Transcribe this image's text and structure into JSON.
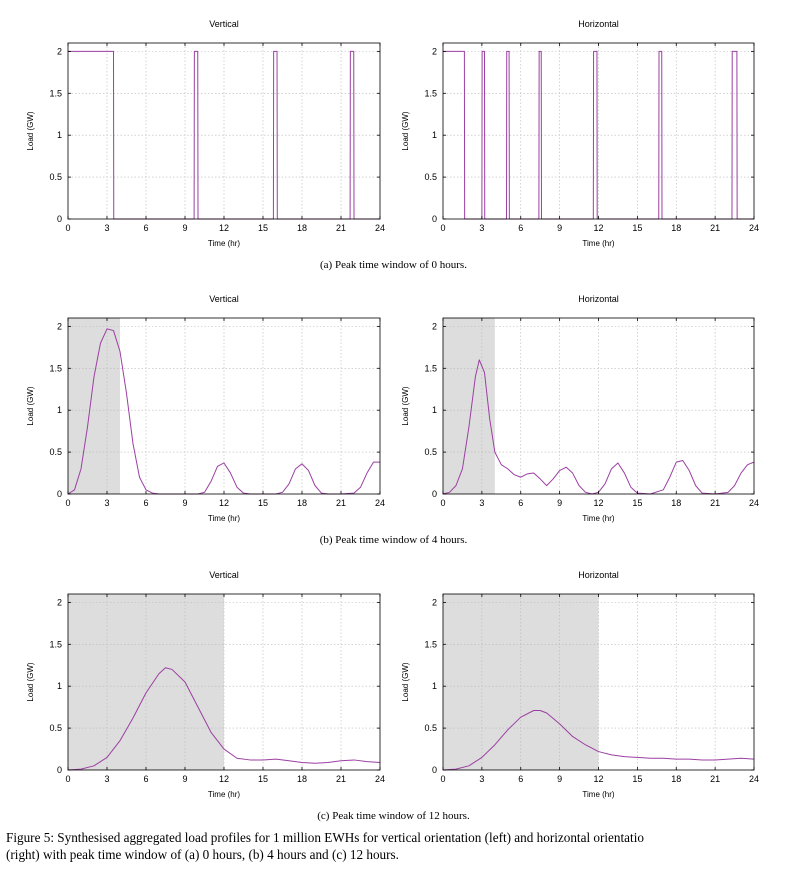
{
  "caption": {
    "line1": "Figure 5: Synthesised aggregated load profiles for 1 million EWHs for vertical orientation (left) and horizontal orientatio",
    "line2": "(right) with peak time window of (a) 0 hours, (b) 4 hours and (c) 12 hours."
  },
  "subcaptions": {
    "a": "(a) Peak time window of 0 hours.",
    "b": "(b) Peak time window of 4 hours.",
    "c": "(c) Peak time window of 12 hours."
  },
  "colors": {
    "series": "#9b3fa2",
    "shade": "#dddddd",
    "grid": "#b8b8b8",
    "axis": "#000000"
  },
  "chart_data": [
    {
      "type": "line",
      "panel": "a-left",
      "title": "Vertical",
      "xlabel": "Time (hr)",
      "ylabel": "Load (GW)",
      "xlim": [
        0,
        24
      ],
      "ylim": [
        0,
        2.1
      ],
      "xticks": [
        "0",
        "3",
        "6",
        "9",
        "12",
        "15",
        "18",
        "21",
        "24"
      ],
      "yticks": [
        "0",
        "0.5",
        "1",
        "1.5",
        "2"
      ],
      "grid": true,
      "shade": null,
      "x": [
        0,
        3.5,
        3.52,
        9.7,
        9.72,
        9.98,
        10,
        15.8,
        15.82,
        16.08,
        16.1,
        21.7,
        21.72,
        21.98,
        22,
        24
      ],
      "y": [
        2,
        2,
        0,
        0,
        2,
        2,
        0,
        0,
        2,
        2,
        0,
        0,
        2,
        2,
        0,
        0
      ]
    },
    {
      "type": "line",
      "panel": "a-right",
      "title": "Horizontal",
      "xlabel": "Time (hr)",
      "ylabel": "Load (GW)",
      "xlim": [
        0,
        24
      ],
      "ylim": [
        0,
        2.1
      ],
      "xticks": [
        "0",
        "3",
        "6",
        "9",
        "12",
        "15",
        "18",
        "21",
        "24"
      ],
      "yticks": [
        "0",
        "0.5",
        "1",
        "1.5",
        "2"
      ],
      "grid": true,
      "shade": null,
      "x": [
        0,
        1.65,
        1.67,
        3.0,
        3.02,
        3.2,
        3.22,
        4.9,
        4.92,
        5.1,
        5.12,
        7.4,
        7.42,
        7.58,
        7.6,
        11.6,
        11.62,
        11.88,
        11.9,
        16.65,
        16.67,
        16.88,
        16.9,
        22.3,
        22.32,
        22.68,
        22.7,
        24
      ],
      "y": [
        2,
        2,
        0,
        0,
        2,
        2,
        0,
        0,
        2,
        2,
        0,
        0,
        2,
        2,
        0,
        0,
        2,
        2,
        0,
        0,
        2,
        2,
        0,
        0,
        2,
        2,
        0,
        0
      ]
    },
    {
      "type": "line",
      "panel": "b-left",
      "title": "Vertical",
      "xlabel": "Time (hr)",
      "ylabel": "Load (GW)",
      "xlim": [
        0,
        24
      ],
      "ylim": [
        0,
        2.1
      ],
      "xticks": [
        "0",
        "3",
        "6",
        "9",
        "12",
        "15",
        "18",
        "21",
        "24"
      ],
      "yticks": [
        "0",
        "0.5",
        "1",
        "1.5",
        "2"
      ],
      "grid": true,
      "shade": [
        0,
        4
      ],
      "x": [
        0,
        0.5,
        1,
        1.5,
        2,
        2.5,
        3,
        3.5,
        4,
        4.5,
        5,
        5.5,
        6,
        6.5,
        7,
        8,
        9,
        10,
        10.5,
        11,
        11.5,
        12,
        12.5,
        13,
        13.5,
        14,
        15,
        16,
        16.5,
        17,
        17.5,
        18,
        18.5,
        19,
        19.5,
        20,
        21,
        22,
        22.5,
        23,
        23.5,
        24
      ],
      "y": [
        0,
        0.05,
        0.3,
        0.8,
        1.4,
        1.8,
        1.97,
        1.95,
        1.7,
        1.2,
        0.6,
        0.2,
        0.05,
        0.01,
        0,
        0,
        0,
        0,
        0.02,
        0.15,
        0.33,
        0.37,
        0.25,
        0.08,
        0.01,
        0,
        0,
        0,
        0.02,
        0.12,
        0.3,
        0.36,
        0.28,
        0.1,
        0.01,
        0,
        0,
        0.01,
        0.08,
        0.25,
        0.38,
        0.38
      ]
    },
    {
      "type": "line",
      "panel": "b-right",
      "title": "Horizontal",
      "xlabel": "Time (hr)",
      "ylabel": "Load (GW)",
      "xlim": [
        0,
        24
      ],
      "ylim": [
        0,
        2.1
      ],
      "xticks": [
        "0",
        "3",
        "6",
        "9",
        "12",
        "15",
        "18",
        "21",
        "24"
      ],
      "yticks": [
        "0",
        "0.5",
        "1",
        "1.5",
        "2"
      ],
      "grid": true,
      "shade": [
        0,
        4
      ],
      "x": [
        0,
        0.5,
        1,
        1.5,
        2,
        2.5,
        2.8,
        3.2,
        3.6,
        4,
        4.5,
        5,
        5.5,
        6,
        6.5,
        7,
        7.5,
        8,
        8.5,
        9,
        9.5,
        10,
        10.5,
        11,
        11.5,
        12,
        12.5,
        13,
        13.5,
        14,
        14.5,
        15,
        16,
        17,
        17.5,
        18,
        18.5,
        19,
        19.5,
        20,
        21,
        22,
        22.5,
        23,
        23.5,
        24
      ],
      "y": [
        0,
        0.02,
        0.1,
        0.3,
        0.8,
        1.4,
        1.6,
        1.45,
        0.9,
        0.5,
        0.35,
        0.3,
        0.23,
        0.2,
        0.24,
        0.25,
        0.18,
        0.1,
        0.18,
        0.28,
        0.32,
        0.25,
        0.1,
        0.02,
        0,
        0.02,
        0.12,
        0.3,
        0.37,
        0.25,
        0.08,
        0.01,
        0,
        0.05,
        0.2,
        0.38,
        0.4,
        0.28,
        0.1,
        0.01,
        0,
        0.02,
        0.1,
        0.25,
        0.35,
        0.38
      ]
    },
    {
      "type": "line",
      "panel": "c-left",
      "title": "Vertical",
      "xlabel": "Time (hr)",
      "ylabel": "Load (GW)",
      "xlim": [
        0,
        24
      ],
      "ylim": [
        0,
        2.1
      ],
      "xticks": [
        "0",
        "3",
        "6",
        "9",
        "12",
        "15",
        "18",
        "21",
        "24"
      ],
      "yticks": [
        "0",
        "0.5",
        "1",
        "1.5",
        "2"
      ],
      "grid": true,
      "shade": [
        0,
        12
      ],
      "x": [
        0,
        1,
        2,
        3,
        4,
        5,
        6,
        7,
        7.5,
        8,
        9,
        10,
        11,
        12,
        13,
        14,
        15,
        16,
        17,
        18,
        19,
        20,
        21,
        22,
        23,
        24
      ],
      "y": [
        0,
        0.01,
        0.05,
        0.15,
        0.35,
        0.62,
        0.92,
        1.15,
        1.22,
        1.2,
        1.05,
        0.75,
        0.45,
        0.25,
        0.14,
        0.12,
        0.12,
        0.13,
        0.11,
        0.09,
        0.08,
        0.09,
        0.11,
        0.12,
        0.1,
        0.09
      ]
    },
    {
      "type": "line",
      "panel": "c-right",
      "title": "Horizontal",
      "xlabel": "Time (hr)",
      "ylabel": "Load (GW)",
      "xlim": [
        0,
        24
      ],
      "ylim": [
        0,
        2.1
      ],
      "xticks": [
        "0",
        "3",
        "6",
        "9",
        "12",
        "15",
        "18",
        "21",
        "24"
      ],
      "yticks": [
        "0",
        "0.5",
        "1",
        "1.5",
        "2"
      ],
      "grid": true,
      "shade": [
        0,
        12
      ],
      "x": [
        0,
        1,
        2,
        3,
        4,
        5,
        6,
        7,
        7.5,
        8,
        9,
        10,
        11,
        12,
        13,
        14,
        15,
        16,
        17,
        18,
        19,
        20,
        21,
        22,
        23,
        24
      ],
      "y": [
        0,
        0.01,
        0.05,
        0.15,
        0.3,
        0.48,
        0.63,
        0.71,
        0.71,
        0.68,
        0.55,
        0.4,
        0.3,
        0.22,
        0.18,
        0.16,
        0.15,
        0.14,
        0.14,
        0.13,
        0.13,
        0.12,
        0.12,
        0.13,
        0.14,
        0.13
      ]
    }
  ]
}
